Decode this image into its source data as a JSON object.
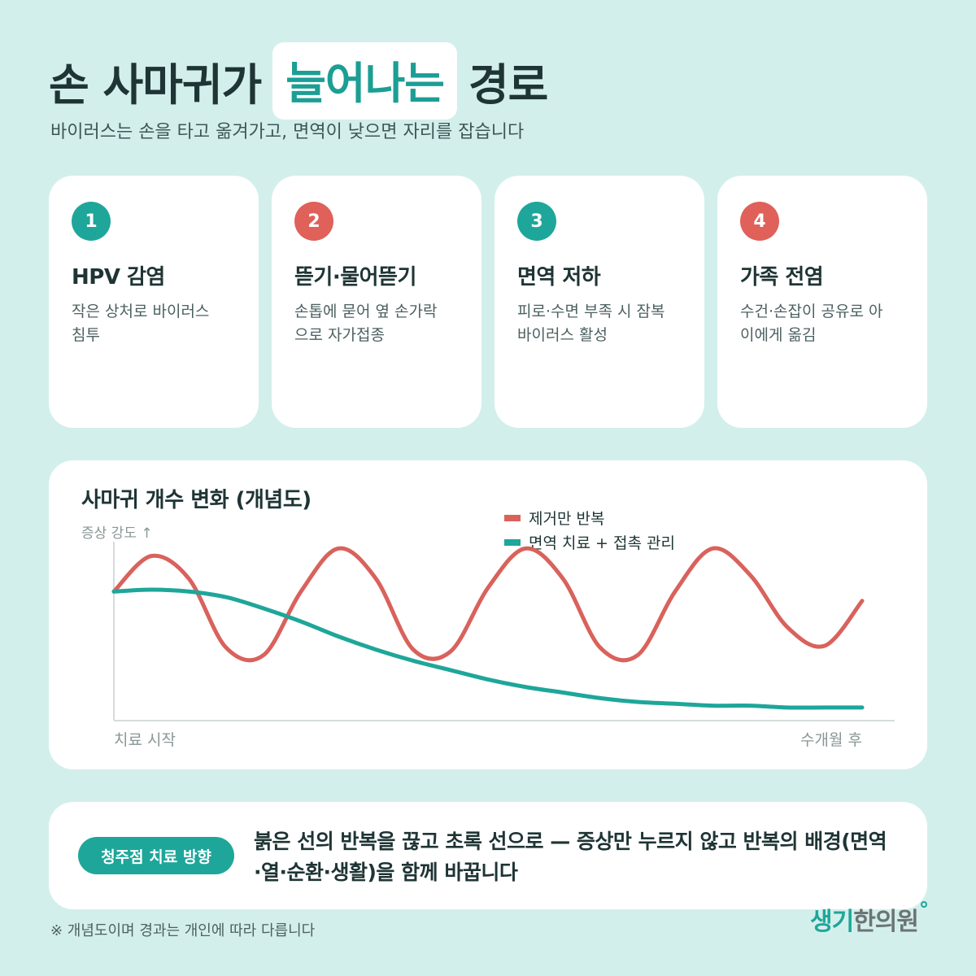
{
  "header": {
    "title_before": "손 사마귀가",
    "title_highlight": "늘어나는",
    "title_after": "경로",
    "subtitle": "바이러스는 손을 타고 옮겨가고, 면역이 낮으면 자리를 잡습니다"
  },
  "steps": [
    {
      "number": "1",
      "title": "HPV 감염",
      "desc_line1": "작은 상처로 바이러스",
      "desc_line2": "침투",
      "color": "#1ea69a"
    },
    {
      "number": "2",
      "title": "뜯기·물어뜯기",
      "desc_line1": "손톱에 묻어 옆 손가락",
      "desc_line2": "으로 자가접종",
      "color": "#e0605a"
    },
    {
      "number": "3",
      "title": "면역 저하",
      "desc_line1": "피로·수면 부족 시 잠복",
      "desc_line2": "바이러스 활성",
      "color": "#1ea69a"
    },
    {
      "number": "4",
      "title": "가족 전염",
      "desc_line1": "수건·손잡이 공유로 아",
      "desc_line2": "이에게 옮김",
      "color": "#e0605a"
    }
  ],
  "chart_data": {
    "type": "line",
    "title": "사마귀 개수 변화 (개념도)",
    "ylabel": "증상 강도 ↑",
    "x_start_label": "치료 시작",
    "x_end_label": "수개월 후",
    "legend_position": "top-right",
    "grid": false,
    "ylim": [
      0,
      100
    ],
    "x": [
      0,
      5,
      10,
      15,
      20,
      25,
      30,
      35,
      40,
      45,
      50,
      55,
      60,
      65,
      70,
      75,
      80,
      85,
      90,
      95,
      100
    ],
    "series": [
      {
        "name": "제거만 반복",
        "color": "#d9625c",
        "values": [
          69,
          88,
          76,
          39,
          35,
          69,
          92,
          76,
          38,
          37,
          71,
          92,
          76,
          39,
          35,
          69,
          92,
          78,
          50,
          40,
          64
        ]
      },
      {
        "name": "면역 치료 + 접촉 관리",
        "color": "#1ea69a",
        "values": [
          69,
          70,
          69,
          66,
          60,
          53,
          45,
          38,
          32,
          27,
          22,
          18,
          15,
          12,
          10,
          9,
          8,
          8,
          7,
          7,
          7
        ]
      }
    ]
  },
  "bottom": {
    "badge": "청주점 치료 방향",
    "text_line1": "붉은 선의 반복을 끊고 초록 선으로 — 증상만 누르지 않고 반복의 배경(면역",
    "text_line2": "·열·순환·생활)을 함께 바꿉니다"
  },
  "footnote": "※ 개념도이며 경과는 개인에 따라 다릅니다",
  "brand": {
    "part1": "생기",
    "part2": "한의원"
  }
}
